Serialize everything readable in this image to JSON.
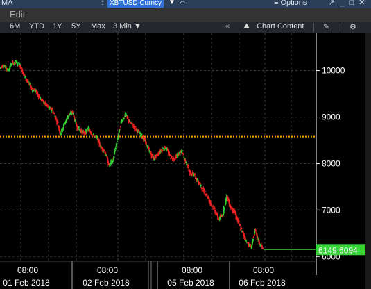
{
  "titlebar": {
    "left_label": "MA",
    "ticker": "XBTUSD Curncy",
    "options_label": "≡ Options",
    "window_controls": "↗ _ □ ✕"
  },
  "menubar": {
    "edit_label": "Edit"
  },
  "toolbar": {
    "ranges": [
      "6M",
      "YTD",
      "1Y",
      "5Y",
      "Max"
    ],
    "interval": "3 Min ▼",
    "collapse": "«",
    "chart_content": "Chart Content",
    "edit_icon": "pencil-icon",
    "settings_icon": "gear-icon"
  },
  "price_tag": "6149.6094",
  "colors": {
    "up": "#33cc33",
    "down": "#ee2222",
    "reference_line": "#ff9900",
    "price_tag": "#35d535"
  },
  "chart_data": {
    "type": "line",
    "ylim": [
      5900,
      10800
    ],
    "y_ticks": [
      6000,
      7000,
      8000,
      9000,
      10000
    ],
    "y_tick_labels": [
      "6000",
      "7000",
      "8000",
      "9000",
      "10000"
    ],
    "reference_line": 8580,
    "last_price": 6149.6094,
    "x_ticks": [
      {
        "time": "08:00",
        "date": "01 Feb 2018"
      },
      {
        "time": "08:00",
        "date": "02 Feb 2018"
      },
      {
        "time": "08:00",
        "date": "05 Feb 2018"
      },
      {
        "time": "08:00",
        "date": "06 Feb 2018"
      }
    ],
    "series": [
      {
        "values": [
          10050,
          10120,
          10000,
          10150,
          10180,
          10120,
          9900,
          9750,
          9600,
          9550,
          9400,
          9300,
          9200,
          9150,
          8950,
          8650,
          8850,
          9050,
          9100,
          8800,
          8700,
          8650,
          8750,
          8600,
          8550,
          8350,
          8250,
          7950,
          8100,
          8500,
          8900,
          9050,
          8900,
          8800,
          8700,
          8600,
          8450,
          8250,
          8100,
          8200,
          8300,
          8350,
          8150,
          8100,
          8200,
          8250,
          8000,
          7800,
          7750,
          7600,
          7450,
          7350,
          7150,
          7000,
          6800,
          6900,
          7300,
          7050,
          6950,
          6700,
          6500,
          6300,
          6200,
          6550,
          6300,
          6149.6
        ]
      }
    ]
  }
}
